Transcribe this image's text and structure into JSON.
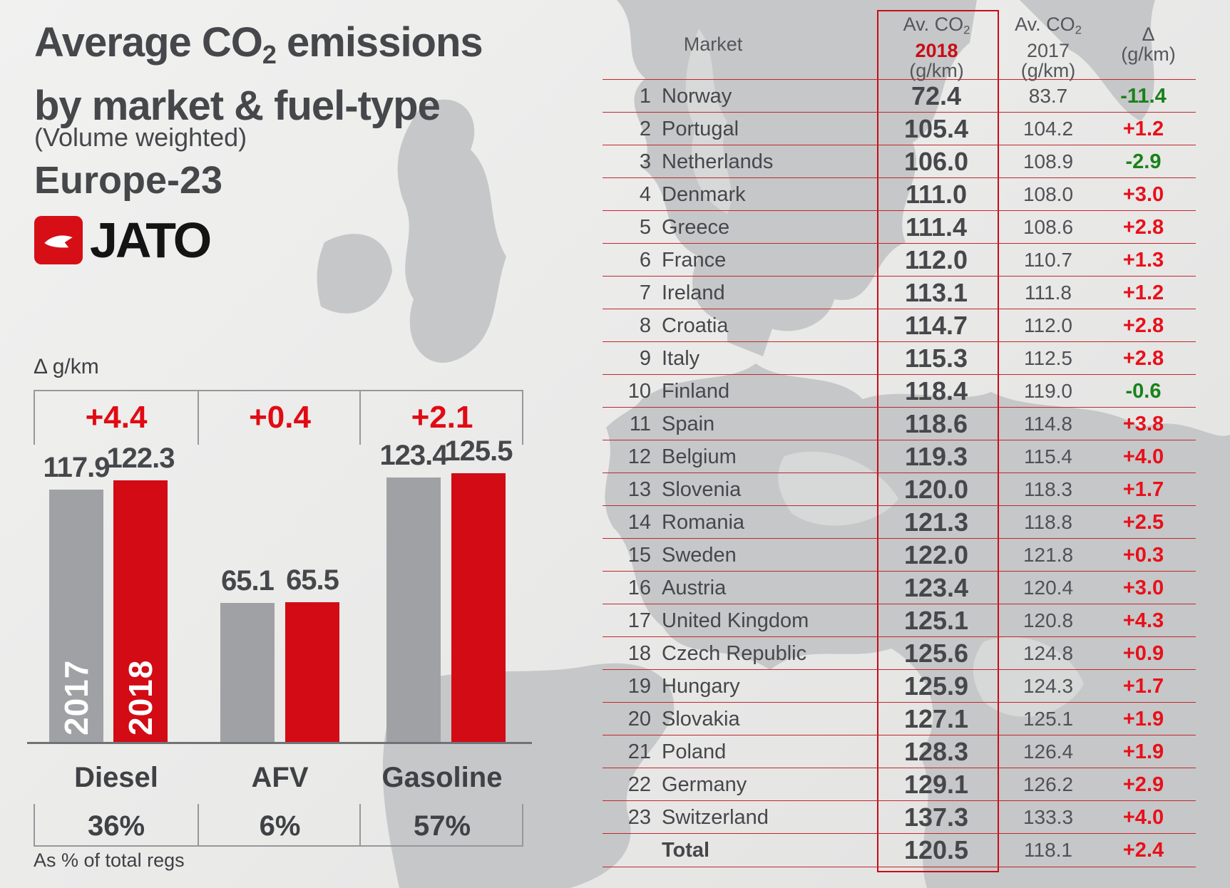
{
  "title": {
    "line1_pre": "Average CO",
    "line1_sub": "2",
    "line1_post": " emissions",
    "line2": "by market & fuel-type",
    "subtitle": "(Volume weighted)",
    "region": "Europe-23"
  },
  "logo": {
    "text": "JATO",
    "icon": "jato-paper-plane-icon",
    "badge_color": "#d60f16"
  },
  "chart": {
    "delta_axis_label": "Δ g/km",
    "note": "As % of total regs",
    "year_2017_label": "2017",
    "year_2018_label": "2018",
    "colors": {
      "bar_2017": "#a0a1a4",
      "bar_2018": "#d20b15",
      "delta_text": "#e00b14"
    },
    "groups": [
      {
        "label": "Diesel",
        "delta": "+4.4",
        "v2017": 117.9,
        "v2018": 122.3,
        "share": "36%"
      },
      {
        "label": "AFV",
        "delta": "+0.4",
        "v2017": 65.1,
        "v2018": 65.5,
        "share": "6%"
      },
      {
        "label": "Gasoline",
        "delta": "+2.1",
        "v2017": 123.4,
        "v2018": 125.5,
        "share": "57%"
      }
    ]
  },
  "table": {
    "headers": {
      "market": "Market",
      "co2_pre": "Av. CO",
      "co2_sub": "2",
      "year_2018": "2018",
      "year_2017": "2017",
      "unit": "(g/km)",
      "delta": "Δ"
    },
    "colors": {
      "positive": "#e8101a",
      "negative": "#198219",
      "box_border": "#c60d16"
    },
    "rows": [
      {
        "rank": "1",
        "market": "Norway",
        "y2018": "72.4",
        "y2017": "83.7",
        "delta": "-11.4",
        "trend": "neg"
      },
      {
        "rank": "2",
        "market": "Portugal",
        "y2018": "105.4",
        "y2017": "104.2",
        "delta": "+1.2",
        "trend": "pos"
      },
      {
        "rank": "3",
        "market": "Netherlands",
        "y2018": "106.0",
        "y2017": "108.9",
        "delta": "-2.9",
        "trend": "neg"
      },
      {
        "rank": "4",
        "market": "Denmark",
        "y2018": "111.0",
        "y2017": "108.0",
        "delta": "+3.0",
        "trend": "pos"
      },
      {
        "rank": "5",
        "market": "Greece",
        "y2018": "111.4",
        "y2017": "108.6",
        "delta": "+2.8",
        "trend": "pos"
      },
      {
        "rank": "6",
        "market": "France",
        "y2018": "112.0",
        "y2017": "110.7",
        "delta": "+1.3",
        "trend": "pos"
      },
      {
        "rank": "7",
        "market": "Ireland",
        "y2018": "113.1",
        "y2017": "111.8",
        "delta": "+1.2",
        "trend": "pos"
      },
      {
        "rank": "8",
        "market": "Croatia",
        "y2018": "114.7",
        "y2017": "112.0",
        "delta": "+2.8",
        "trend": "pos"
      },
      {
        "rank": "9",
        "market": "Italy",
        "y2018": "115.3",
        "y2017": "112.5",
        "delta": "+2.8",
        "trend": "pos"
      },
      {
        "rank": "10",
        "market": "Finland",
        "y2018": "118.4",
        "y2017": "119.0",
        "delta": "-0.6",
        "trend": "neg"
      },
      {
        "rank": "11",
        "market": "Spain",
        "y2018": "118.6",
        "y2017": "114.8",
        "delta": "+3.8",
        "trend": "pos"
      },
      {
        "rank": "12",
        "market": "Belgium",
        "y2018": "119.3",
        "y2017": "115.4",
        "delta": "+4.0",
        "trend": "pos"
      },
      {
        "rank": "13",
        "market": "Slovenia",
        "y2018": "120.0",
        "y2017": "118.3",
        "delta": "+1.7",
        "trend": "pos"
      },
      {
        "rank": "14",
        "market": "Romania",
        "y2018": "121.3",
        "y2017": "118.8",
        "delta": "+2.5",
        "trend": "pos"
      },
      {
        "rank": "15",
        "market": "Sweden",
        "y2018": "122.0",
        "y2017": "121.8",
        "delta": "+0.3",
        "trend": "pos"
      },
      {
        "rank": "16",
        "market": "Austria",
        "y2018": "123.4",
        "y2017": "120.4",
        "delta": "+3.0",
        "trend": "pos"
      },
      {
        "rank": "17",
        "market": "United Kingdom",
        "y2018": "125.1",
        "y2017": "120.8",
        "delta": "+4.3",
        "trend": "pos"
      },
      {
        "rank": "18",
        "market": "Czech Republic",
        "y2018": "125.6",
        "y2017": "124.8",
        "delta": "+0.9",
        "trend": "pos"
      },
      {
        "rank": "19",
        "market": "Hungary",
        "y2018": "125.9",
        "y2017": "124.3",
        "delta": "+1.7",
        "trend": "pos"
      },
      {
        "rank": "20",
        "market": "Slovakia",
        "y2018": "127.1",
        "y2017": "125.1",
        "delta": "+1.9",
        "trend": "pos"
      },
      {
        "rank": "21",
        "market": "Poland",
        "y2018": "128.3",
        "y2017": "126.4",
        "delta": "+1.9",
        "trend": "pos"
      },
      {
        "rank": "22",
        "market": "Germany",
        "y2018": "129.1",
        "y2017": "126.2",
        "delta": "+2.9",
        "trend": "pos"
      },
      {
        "rank": "23",
        "market": "Switzerland",
        "y2018": "137.3",
        "y2017": "133.3",
        "delta": "+4.0",
        "trend": "pos"
      },
      {
        "rank": "",
        "market": "Total",
        "y2018": "120.5",
        "y2017": "118.1",
        "delta": "+2.4",
        "trend": "pos",
        "is_total": true
      }
    ]
  },
  "chart_data": [
    {
      "type": "bar",
      "title": "Average CO2 emissions by market & fuel-type (Volume weighted) Europe-23",
      "categories": [
        "Diesel",
        "AFV",
        "Gasoline"
      ],
      "series": [
        {
          "name": "2017",
          "values": [
            117.9,
            65.1,
            123.4
          ]
        },
        {
          "name": "2018",
          "values": [
            122.3,
            65.5,
            125.5
          ]
        }
      ],
      "annotations": {
        "delta_g_km": [
          "+4.4",
          "+0.4",
          "+2.1"
        ],
        "share_of_total_regs": [
          "36%",
          "6%",
          "57%"
        ]
      },
      "xlabel": "",
      "ylabel": "Δ g/km",
      "ylim": [
        0,
        140
      ],
      "grid": false,
      "legend_position": "inside-bars"
    },
    {
      "type": "table",
      "title": "Average CO2 emissions by market",
      "columns": [
        "Market",
        "Av. CO2 2018 (g/km)",
        "Av. CO2 2017 (g/km)",
        "Δ (g/km)"
      ],
      "rows": [
        [
          "Norway",
          72.4,
          83.7,
          -11.4
        ],
        [
          "Portugal",
          105.4,
          104.2,
          1.2
        ],
        [
          "Netherlands",
          106.0,
          108.9,
          -2.9
        ],
        [
          "Denmark",
          111.0,
          108.0,
          3.0
        ],
        [
          "Greece",
          111.4,
          108.6,
          2.8
        ],
        [
          "France",
          112.0,
          110.7,
          1.3
        ],
        [
          "Ireland",
          113.1,
          111.8,
          1.2
        ],
        [
          "Croatia",
          114.7,
          112.0,
          2.8
        ],
        [
          "Italy",
          115.3,
          112.5,
          2.8
        ],
        [
          "Finland",
          118.4,
          119.0,
          -0.6
        ],
        [
          "Spain",
          118.6,
          114.8,
          3.8
        ],
        [
          "Belgium",
          119.3,
          115.4,
          4.0
        ],
        [
          "Slovenia",
          120.0,
          118.3,
          1.7
        ],
        [
          "Romania",
          121.3,
          118.8,
          2.5
        ],
        [
          "Sweden",
          122.0,
          121.8,
          0.3
        ],
        [
          "Austria",
          123.4,
          120.4,
          3.0
        ],
        [
          "United Kingdom",
          125.1,
          120.8,
          4.3
        ],
        [
          "Czech Republic",
          125.6,
          124.8,
          0.9
        ],
        [
          "Hungary",
          125.9,
          124.3,
          1.7
        ],
        [
          "Slovakia",
          127.1,
          125.1,
          1.9
        ],
        [
          "Poland",
          128.3,
          126.4,
          1.9
        ],
        [
          "Germany",
          129.1,
          126.2,
          2.9
        ],
        [
          "Switzerland",
          137.3,
          133.3,
          4.0
        ],
        [
          "Total",
          120.5,
          118.1,
          2.4
        ]
      ]
    }
  ]
}
